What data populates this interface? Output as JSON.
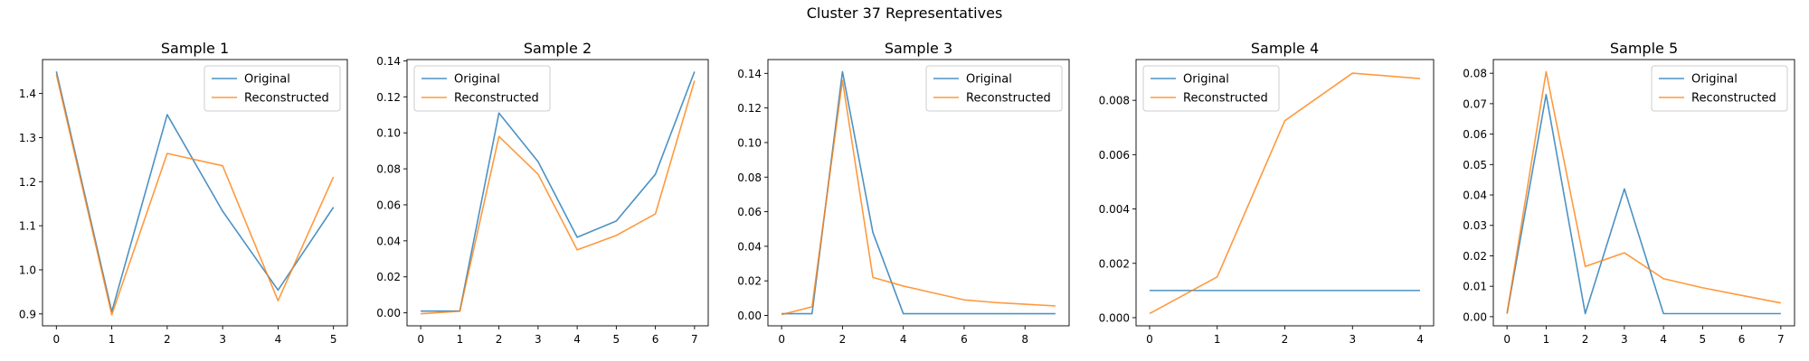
{
  "figure": {
    "suptitle": "Cluster 37 Representatives",
    "colors": {
      "original": "#1f77b4",
      "reconstructed": "#ff7f0e"
    }
  },
  "chart_data": [
    {
      "type": "line",
      "title": "Sample 1",
      "x": [
        0,
        1,
        2,
        3,
        4,
        5
      ],
      "series": [
        {
          "name": "Original",
          "values": [
            1.45,
            0.905,
            1.352,
            1.133,
            0.954,
            1.142
          ]
        },
        {
          "name": "Reconstructed",
          "values": [
            1.443,
            0.898,
            1.264,
            1.236,
            0.93,
            1.211
          ]
        }
      ],
      "xticks": [
        0,
        1,
        2,
        3,
        4,
        5
      ],
      "yticks": [
        0.9,
        1.0,
        1.1,
        1.2,
        1.3,
        1.4
      ],
      "ytick_labels": [
        "0.9",
        "1.0",
        "1.1",
        "1.2",
        "1.3",
        "1.4"
      ],
      "xlim": [
        -0.25,
        5.25
      ],
      "ylim": [
        0.873,
        1.477
      ],
      "legend": "upper right"
    },
    {
      "type": "line",
      "title": "Sample 2",
      "x": [
        0,
        1,
        2,
        3,
        4,
        5,
        6,
        7
      ],
      "series": [
        {
          "name": "Original",
          "values": [
            0.001,
            0.001,
            0.111,
            0.084,
            0.042,
            0.051,
            0.077,
            0.134
          ]
        },
        {
          "name": "Reconstructed",
          "values": [
            -0.0005,
            0.0009,
            0.098,
            0.077,
            0.035,
            0.043,
            0.055,
            0.129
          ]
        }
      ],
      "xticks": [
        0,
        1,
        2,
        3,
        4,
        5,
        6,
        7
      ],
      "yticks": [
        0,
        0.02,
        0.04,
        0.06,
        0.08,
        0.1,
        0.12,
        0.14
      ],
      "ytick_labels": [
        "0.00",
        "0.02",
        "0.04",
        "0.06",
        "0.08",
        "0.10",
        "0.12",
        "0.14"
      ],
      "xlim": [
        -0.35,
        7.35
      ],
      "ylim": [
        -0.0072,
        0.1407
      ],
      "legend": "upper left"
    },
    {
      "type": "line",
      "title": "Sample 3",
      "x": [
        0,
        1,
        2,
        3,
        4,
        5,
        6,
        7,
        8,
        9
      ],
      "series": [
        {
          "name": "Original",
          "values": [
            0.001,
            0.001,
            0.141,
            0.048,
            0.001,
            0.001,
            0.001,
            0.001,
            0.001,
            0.001
          ]
        },
        {
          "name": "Reconstructed",
          "values": [
            0.0005,
            0.005,
            0.136,
            0.022,
            0.017,
            0.013,
            0.009,
            0.0075,
            0.0065,
            0.0055
          ]
        }
      ],
      "xticks": [
        0,
        2,
        4,
        6,
        8
      ],
      "yticks": [
        0,
        0.02,
        0.04,
        0.06,
        0.08,
        0.1,
        0.12,
        0.14
      ],
      "ytick_labels": [
        "0.00",
        "0.02",
        "0.04",
        "0.06",
        "0.08",
        "0.10",
        "0.12",
        "0.14"
      ],
      "xlim": [
        -0.45,
        9.45
      ],
      "ylim": [
        -0.006,
        0.148
      ],
      "legend": "upper right"
    },
    {
      "type": "line",
      "title": "Sample 4",
      "x": [
        0,
        1,
        2,
        3,
        4
      ],
      "series": [
        {
          "name": "Original",
          "values": [
            0.001,
            0.001,
            0.001,
            0.001,
            0.001
          ]
        },
        {
          "name": "Reconstructed",
          "values": [
            0.00015,
            0.0015,
            0.00725,
            0.009,
            0.0088
          ]
        }
      ],
      "xticks": [
        0,
        1,
        2,
        3,
        4
      ],
      "yticks": [
        0,
        0.002,
        0.004,
        0.006,
        0.008
      ],
      "ytick_labels": [
        "0.000",
        "0.002",
        "0.004",
        "0.006",
        "0.008"
      ],
      "xlim": [
        -0.2,
        4.2
      ],
      "ylim": [
        -0.0003,
        0.0095
      ],
      "legend": "upper left"
    },
    {
      "type": "line",
      "title": "Sample 5",
      "x": [
        0,
        1,
        2,
        3,
        4,
        5,
        6,
        7
      ],
      "series": [
        {
          "name": "Original",
          "values": [
            0.001,
            0.073,
            0.001,
            0.042,
            0.001,
            0.001,
            0.001,
            0.001
          ]
        },
        {
          "name": "Reconstructed",
          "values": [
            0.001,
            0.0805,
            0.0165,
            0.021,
            0.0125,
            0.0095,
            0.007,
            0.0045
          ]
        }
      ],
      "xticks": [
        0,
        1,
        2,
        3,
        4,
        5,
        6,
        7
      ],
      "yticks": [
        0,
        0.01,
        0.02,
        0.03,
        0.04,
        0.05,
        0.06,
        0.07,
        0.08
      ],
      "ytick_labels": [
        "0.00",
        "0.01",
        "0.02",
        "0.03",
        "0.04",
        "0.05",
        "0.06",
        "0.07",
        "0.08"
      ],
      "xlim": [
        -0.35,
        7.35
      ],
      "ylim": [
        -0.003,
        0.0845
      ],
      "legend": "upper right"
    }
  ]
}
